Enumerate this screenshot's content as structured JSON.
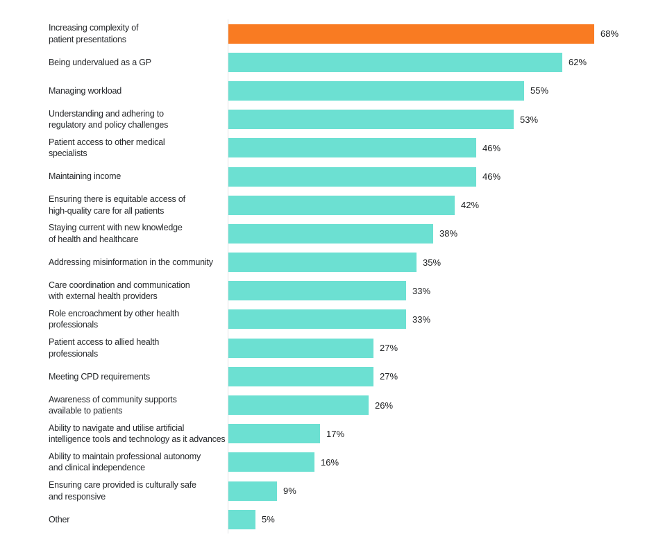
{
  "chart_data": {
    "type": "bar",
    "orientation": "horizontal",
    "title": "",
    "xlabel": "",
    "ylabel": "",
    "xlim": [
      0,
      100
    ],
    "grid": false,
    "legend": false,
    "highlight_index": 0,
    "highlight_color": "#f97b22",
    "bar_color": "#6ce0d2",
    "axis_line_color": "#e1e3e4",
    "label_color": "#26282b",
    "value_label_color": "#1c1e20",
    "categories": [
      "Increasing complexity of\npatient presentations",
      "Being undervalued as a GP",
      "Managing workload",
      "Understanding and adhering to\nregulatory and policy challenges",
      "Patient access to other medical\nspecialists",
      "Maintaining income",
      "Ensuring there is equitable access of\nhigh-quality care for all patients",
      "Staying current with new knowledge\nof health and healthcare",
      "Addressing misinformation in the community",
      "Care coordination and communication\nwith external health providers",
      "Role encroachment by other health\nprofessionals",
      "Patient access to allied health\nprofessionals",
      "Meeting CPD requirements",
      "Awareness of community supports\navailable to patients",
      "Ability to navigate and utilise artificial\nintelligence tools and technology as it advances",
      "Ability to maintain professional autonomy\nand clinical independence",
      "Ensuring care provided is culturally safe\nand responsive",
      "Other"
    ],
    "values": [
      68,
      62,
      55,
      53,
      46,
      46,
      42,
      38,
      35,
      33,
      33,
      27,
      27,
      26,
      17,
      16,
      9,
      5
    ],
    "value_labels": [
      "68%",
      "62%",
      "55%",
      "53%",
      "46%",
      "46%",
      "42%",
      "38%",
      "35%",
      "33%",
      "33%",
      "27%",
      "27%",
      "26%",
      "17%",
      "16%",
      "9%",
      "5%"
    ]
  }
}
